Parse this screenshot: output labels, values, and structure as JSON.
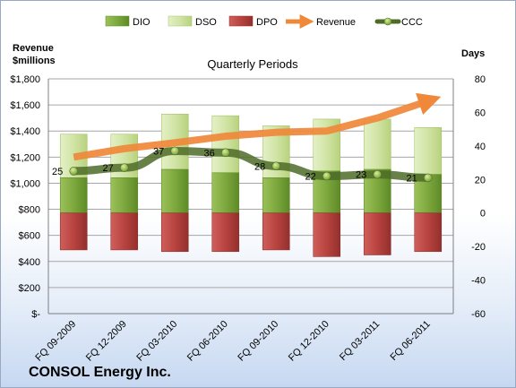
{
  "chart_data": {
    "type": "bar",
    "title": "Quarterly Periods",
    "company": "CONSOL Energy Inc.",
    "left_axis_title": [
      "Revenue",
      "$millions"
    ],
    "right_axis_title": "Days",
    "categories": [
      "FQ 09-2009",
      "FQ 12-2009",
      "FQ 03-2010",
      "FQ 06-2010",
      "FQ 09-2010",
      "FQ 12-2010",
      "FQ 03-2011",
      "FQ 06-2011"
    ],
    "left_ticks": [
      "$-",
      "$200",
      "$400",
      "$600",
      "$800",
      "$1,000",
      "$1,200",
      "$1,400",
      "$1,600",
      "$1,800"
    ],
    "right_ticks": [
      "-60",
      "-40",
      "-20",
      "0",
      "20",
      "40",
      "60",
      "80"
    ],
    "left_ylim": [
      0,
      1800
    ],
    "right_ylim": [
      -60,
      80
    ],
    "grid": true,
    "legend_position": "top",
    "series": [
      {
        "name": "DIO",
        "kind": "bar",
        "values": [
          21,
          21,
          26,
          24,
          21,
          25,
          26,
          23
        ],
        "color": "#8fb24e"
      },
      {
        "name": "DSO",
        "kind": "bar",
        "values": [
          26,
          26,
          33,
          34,
          31,
          31,
          30,
          28
        ],
        "color": "#d6e8b0"
      },
      {
        "name": "DPO",
        "kind": "bar",
        "values": [
          -22,
          -22,
          -23,
          -23,
          -22,
          -26,
          -25,
          -23
        ],
        "color": "#c0504d"
      },
      {
        "name": "Revenue",
        "kind": "line",
        "axis": "left",
        "values": [
          1200,
          1265,
          1310,
          1360,
          1390,
          1400,
          1500,
          1630
        ],
        "color": "#f0883a"
      },
      {
        "name": "CCC",
        "kind": "line",
        "axis": "right",
        "values": [
          25,
          27,
          37,
          36,
          28,
          22,
          23,
          21
        ],
        "labels": [
          "25",
          "27",
          "37",
          "36",
          "28",
          "22",
          "23",
          "21"
        ],
        "color": "#4e6b28"
      }
    ]
  }
}
